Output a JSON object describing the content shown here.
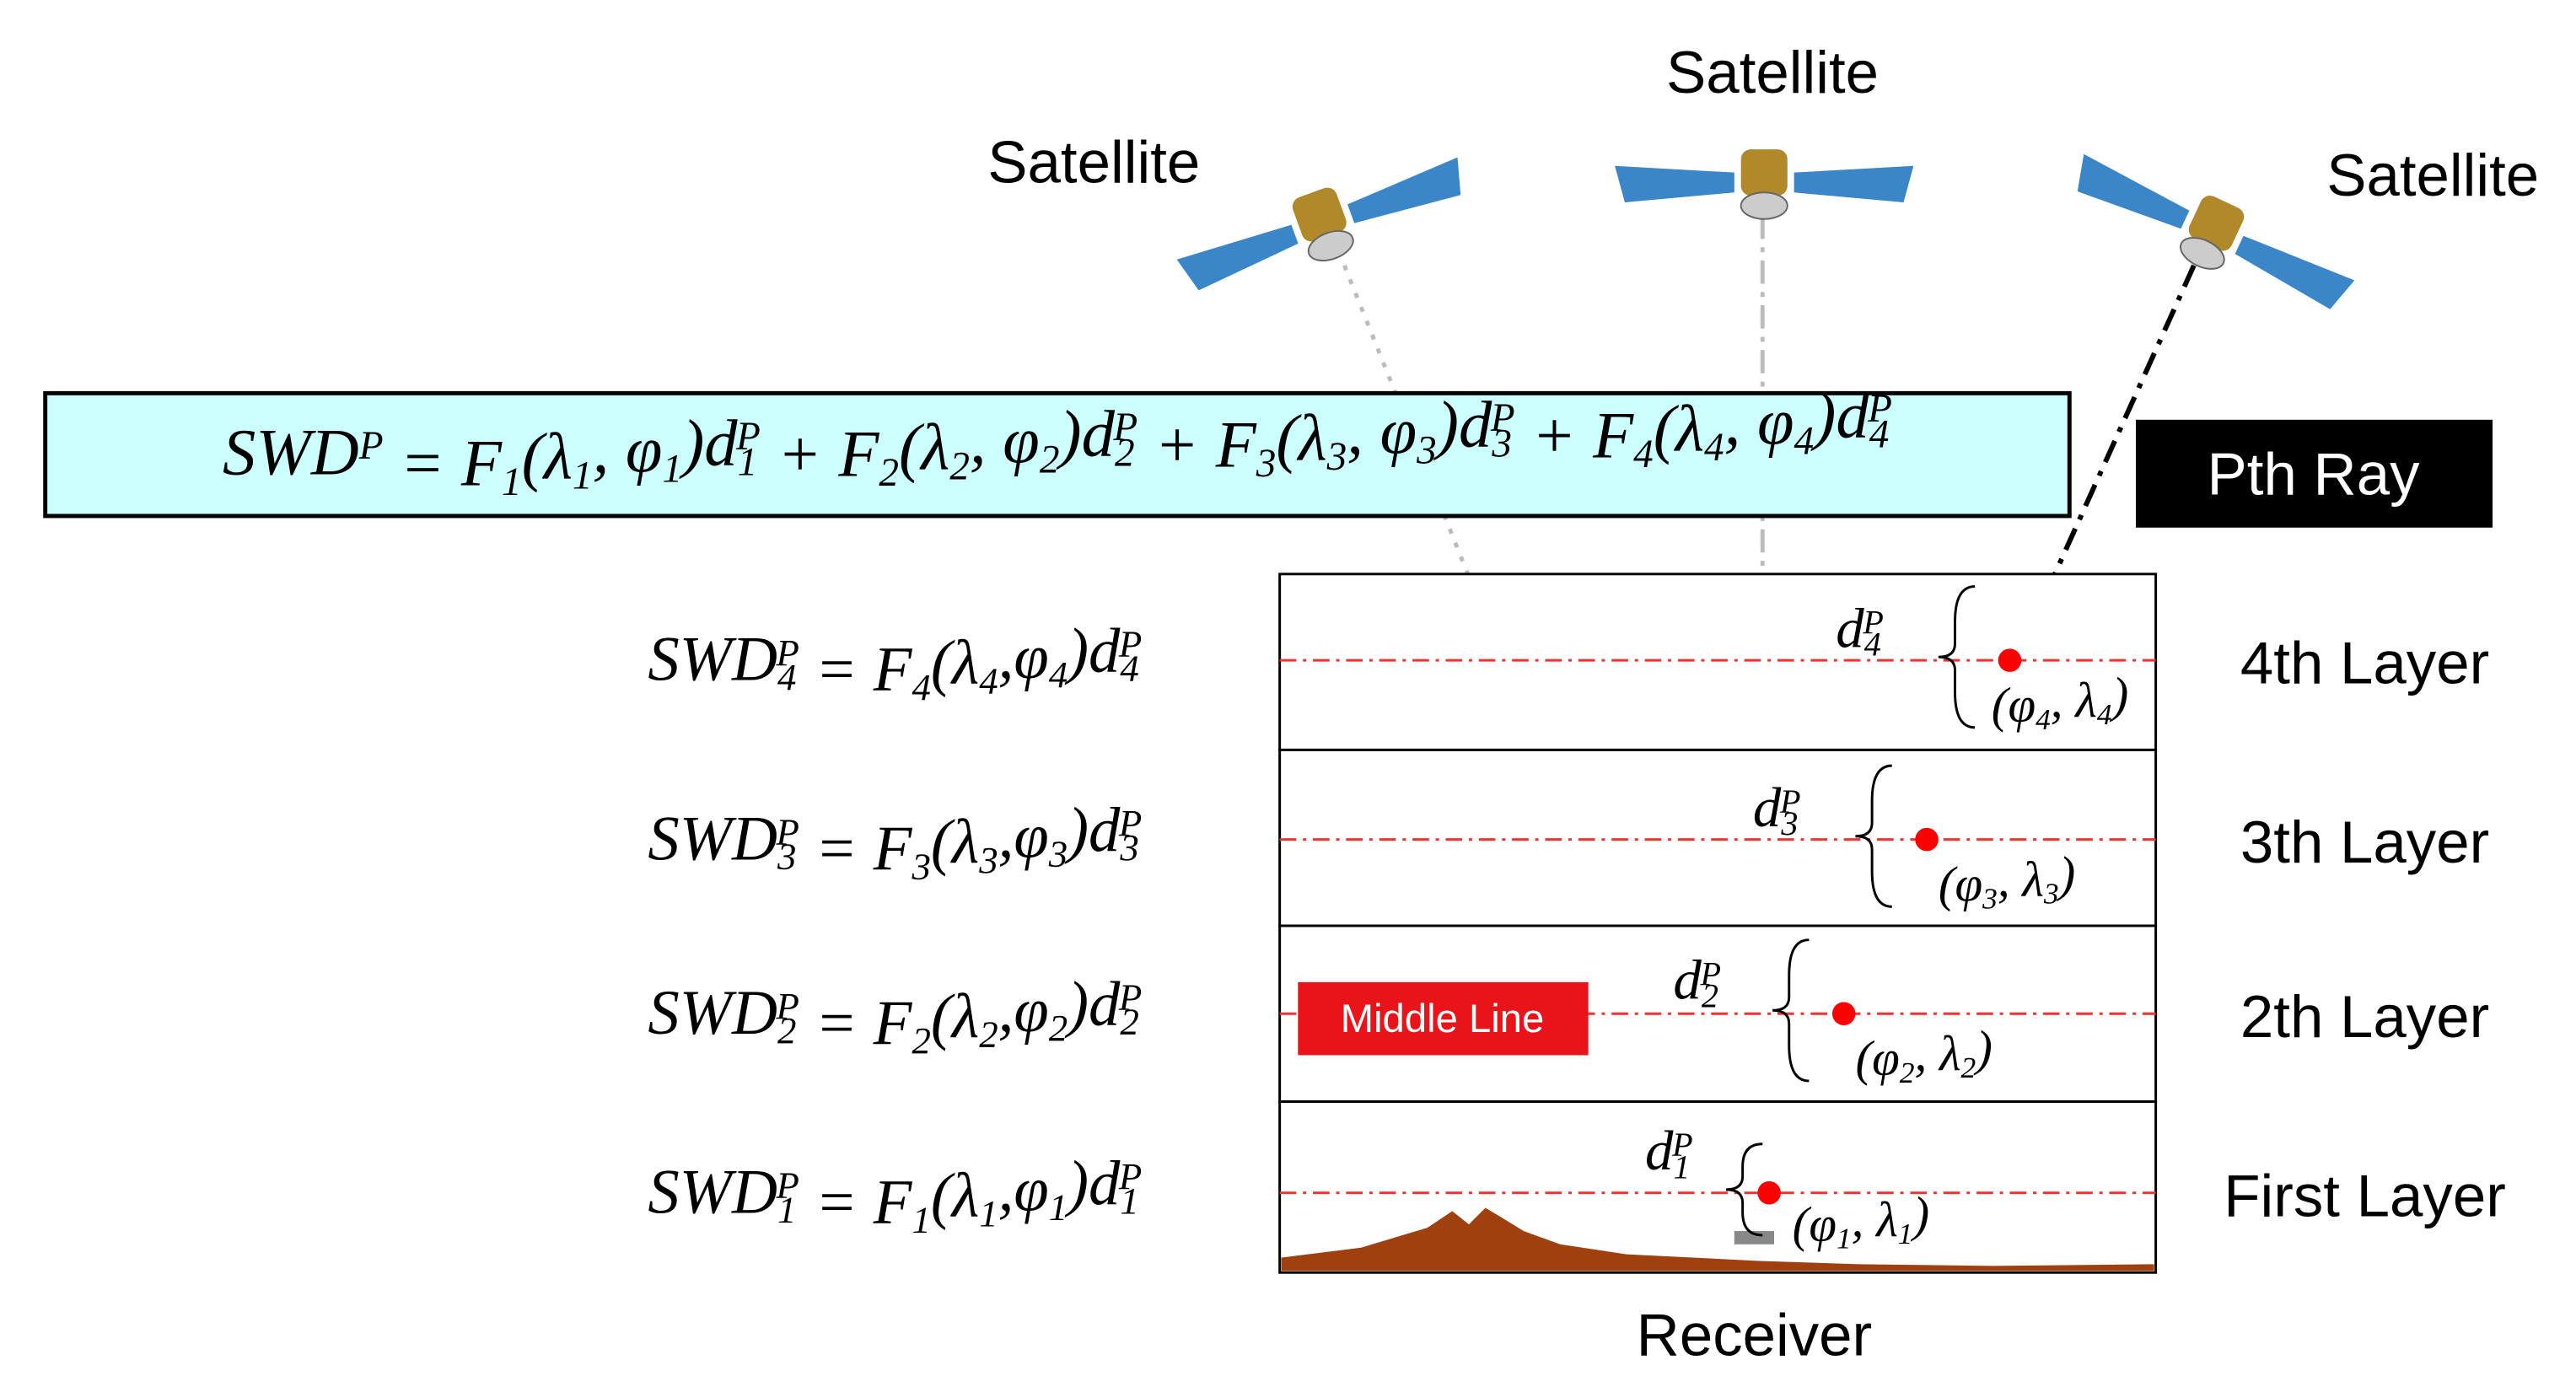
{
  "satellites": [
    "Satellite",
    "Satellite",
    "Satellite"
  ],
  "main_equation": [
    {
      "text": "SWD",
      "sup": "P"
    },
    {
      "text": " = F",
      "sub": "1"
    },
    {
      "text": "(λ",
      "sub": "1"
    },
    {
      "text": ", φ",
      "sub": "1"
    },
    {
      "text": ")d",
      "sub": "1",
      "sup": "P"
    },
    {
      "text": " + F",
      "sub": "2"
    },
    {
      "text": "(λ",
      "sub": "2"
    },
    {
      "text": ", φ",
      "sub": "2"
    },
    {
      "text": ")d",
      "sub": "2",
      "sup": "P"
    },
    {
      "text": " + F",
      "sub": "3"
    },
    {
      "text": "(λ",
      "sub": "3"
    },
    {
      "text": ", φ",
      "sub": "3"
    },
    {
      "text": ")d",
      "sub": "3",
      "sup": "P"
    },
    {
      "text": " + F",
      "sub": "4"
    },
    {
      "text": "(λ",
      "sub": "4"
    },
    {
      "text": ", φ",
      "sub": "4"
    },
    {
      "text": ")d",
      "sub": "4",
      "sup": "P"
    }
  ],
  "pth_ray": "Pth Ray",
  "layers": [
    {
      "name": "4th Layer",
      "equation": [
        {
          "text": "SWD",
          "sub": "4",
          "sup": "P"
        },
        {
          "text": " = F",
          "sub": "4"
        },
        {
          "text": "(λ",
          "sub": "4"
        },
        {
          "text": ",φ",
          "sub": "4"
        },
        {
          "text": ")d",
          "sub": "4",
          "sup": "P"
        }
      ],
      "distance": [
        {
          "text": "d",
          "sub": "4",
          "sup": "P"
        }
      ],
      "coordinate": [
        {
          "text": "(φ",
          "sub": "4"
        },
        {
          "text": ", λ",
          "sub": "4"
        },
        {
          "text": ")"
        }
      ]
    },
    {
      "name": "3th Layer",
      "equation": [
        {
          "text": "SWD",
          "sub": "3",
          "sup": "P"
        },
        {
          "text": " = F",
          "sub": "3"
        },
        {
          "text": "(λ",
          "sub": "3"
        },
        {
          "text": ",φ",
          "sub": "3"
        },
        {
          "text": ")d",
          "sub": "3",
          "sup": "P"
        }
      ],
      "distance": [
        {
          "text": "d",
          "sub": "3",
          "sup": "P"
        }
      ],
      "coordinate": [
        {
          "text": "(φ",
          "sub": "3"
        },
        {
          "text": ", λ",
          "sub": "3"
        },
        {
          "text": ")"
        }
      ]
    },
    {
      "name": "2th Layer",
      "equation": [
        {
          "text": "SWD",
          "sub": "2",
          "sup": "P"
        },
        {
          "text": " = F",
          "sub": "2"
        },
        {
          "text": "(λ",
          "sub": "2"
        },
        {
          "text": ",φ",
          "sub": "2"
        },
        {
          "text": ")d",
          "sub": "2",
          "sup": "P"
        }
      ],
      "distance": [
        {
          "text": "d",
          "sub": "2",
          "sup": "P"
        }
      ],
      "coordinate": [
        {
          "text": "(φ",
          "sub": "2"
        },
        {
          "text": ", λ",
          "sub": "2"
        },
        {
          "text": ")"
        }
      ]
    },
    {
      "name": "First Layer",
      "equation": [
        {
          "text": "SWD",
          "sub": "1",
          "sup": "P"
        },
        {
          "text": " = F",
          "sub": "1"
        },
        {
          "text": "(λ",
          "sub": "1"
        },
        {
          "text": ",φ",
          "sub": "1"
        },
        {
          "text": ")d",
          "sub": "1",
          "sup": "P"
        }
      ],
      "distance": [
        {
          "text": "d",
          "sub": "1",
          "sup": "P"
        }
      ],
      "coordinate": [
        {
          "text": "(φ",
          "sub": "1"
        },
        {
          "text": ", λ",
          "sub": "1"
        },
        {
          "text": ")"
        }
      ]
    }
  ],
  "middle_line": "Middle Line",
  "receiver": "Receiver"
}
